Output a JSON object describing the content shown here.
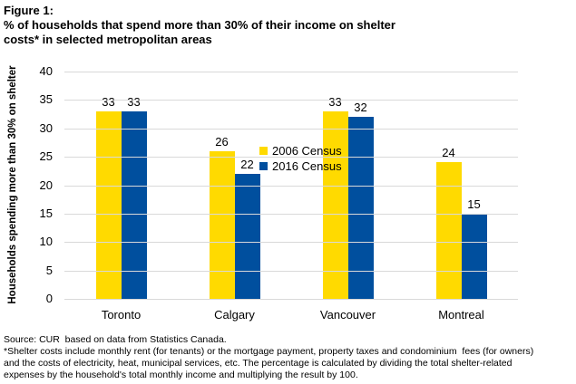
{
  "title": {
    "lines": [
      "Figure 1:",
      "% of households that spend more than 30% of their income on shelter",
      "costs* in selected metropolitan areas"
    ]
  },
  "chart_data": {
    "type": "bar",
    "categories": [
      "Toronto",
      "Calgary",
      "Vancouver",
      "Montreal"
    ],
    "series": [
      {
        "name": "2006 Census",
        "color": "#FFDA00",
        "values": [
          33,
          26,
          33,
          24
        ]
      },
      {
        "name": "2016 Census",
        "color": "#004F9E",
        "values": [
          33,
          22,
          32,
          15
        ]
      }
    ],
    "title": "% of households that spend more than 30% of their income on shelter costs* in selected metropolitan areas",
    "xlabel": "",
    "ylabel": "Households spending more than 30% on shelter",
    "ylim": [
      0,
      40
    ],
    "yticks": [
      0,
      5,
      10,
      15,
      20,
      25,
      30,
      35,
      40
    ],
    "grid": true,
    "legend_position": "top-inside",
    "data_labels": true,
    "gridline_color": "#D9D9D9"
  },
  "footer": {
    "lines": [
      "Source: CUR  based on data from Statistics Canada.",
      "*Shelter costs include monthly rent (for tenants) or the mortgage payment, property taxes and condominium  fees (for owners)",
      "and the costs of electricity, heat, municipal services, etc. The percentage is calculated by dividing the total shelter-related",
      "expenses by the household's total monthly income and multiplying the result by 100."
    ]
  }
}
